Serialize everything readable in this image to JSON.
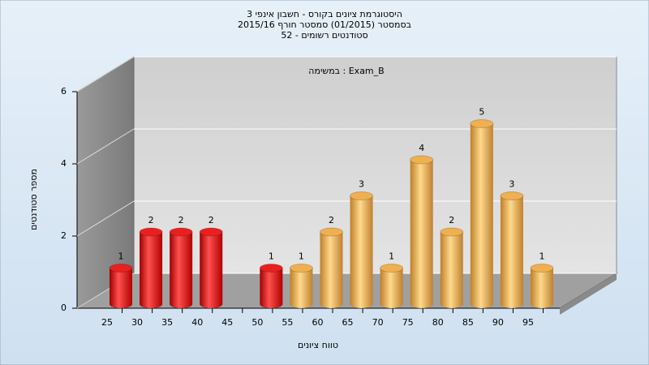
{
  "chart_data": {
    "type": "bar",
    "title": [
      "היסטוגרמת ציונים בקורס - חשבון אינפי 3",
      "בסמסטר  (01/2015)  סמסטר חורף 2015/16",
      "סטודנטים רשומים - 52"
    ],
    "subtitle": "במשימה : Exam_B",
    "xlabel": "טווח ציונים",
    "ylabel": "מספר סטודנטים",
    "categories": [
      "25",
      "30",
      "35",
      "40",
      "45",
      "50",
      "55",
      "60",
      "65",
      "70",
      "75",
      "80",
      "85",
      "90",
      "95"
    ],
    "values": [
      1,
      2,
      2,
      2,
      0,
      1,
      1,
      2,
      3,
      1,
      4,
      2,
      5,
      3,
      1
    ],
    "colors": [
      "red",
      "red",
      "red",
      "red",
      "red",
      "red",
      "orange",
      "orange",
      "orange",
      "orange",
      "orange",
      "orange",
      "orange",
      "orange",
      "orange"
    ],
    "ylim": [
      0,
      6
    ],
    "yticks": [
      0,
      2,
      4,
      6
    ],
    "grid": true
  }
}
